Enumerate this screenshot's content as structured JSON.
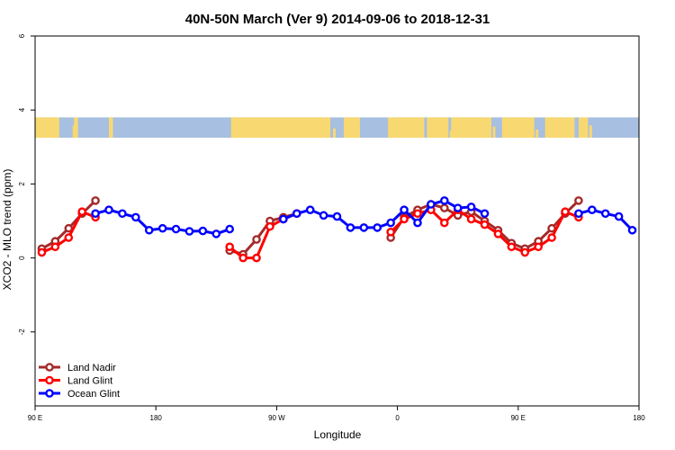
{
  "chart_data": {
    "type": "line",
    "title": "40N-50N March (Ver 9)   2014-09-06 to 2018-12-31",
    "xlabel": "Longitude",
    "ylabel": "XCO2 - MLO trend (ppm)",
    "x_ticks": [
      "90 E",
      "180",
      "90 W",
      "0",
      "90 E",
      "180"
    ],
    "y_ticks": [
      "-2",
      "0",
      "2",
      "4",
      "6"
    ],
    "xlim": [
      90,
      540
    ],
    "ylim": [
      -4,
      6
    ],
    "legend_position": "bottom-left",
    "map_band": {
      "ymin": 3.25,
      "ymax": 3.8,
      "land_color": "#f8d871",
      "ocean_color": "#a7bfe0"
    },
    "series": [
      {
        "name": "Land Nadir",
        "color": "#a52a2a",
        "points": [
          {
            "x": 95,
            "y": 0.25
          },
          {
            "x": 105,
            "y": 0.45
          },
          {
            "x": 115,
            "y": 0.8
          },
          {
            "x": 125,
            "y": 1.2
          },
          {
            "x": 135,
            "y": 1.55
          },
          {
            "x": 235,
            "y": 0.2
          },
          {
            "x": 245,
            "y": 0.1
          },
          {
            "x": 255,
            "y": 0.5
          },
          {
            "x": 265,
            "y": 1.0
          },
          {
            "x": 275,
            "y": 1.1
          },
          {
            "x": 285,
            "y": 1.2
          },
          {
            "x": 355,
            "y": 0.55
          },
          {
            "x": 365,
            "y": 1.1
          },
          {
            "x": 375,
            "y": 1.3
          },
          {
            "x": 385,
            "y": 1.45
          },
          {
            "x": 395,
            "y": 1.35
          },
          {
            "x": 405,
            "y": 1.15
          },
          {
            "x": 415,
            "y": 1.25
          },
          {
            "x": 425,
            "y": 1.0
          },
          {
            "x": 435,
            "y": 0.75
          },
          {
            "x": 445,
            "y": 0.4
          },
          {
            "x": 455,
            "y": 0.25
          },
          {
            "x": 465,
            "y": 0.45
          },
          {
            "x": 475,
            "y": 0.8
          },
          {
            "x": 485,
            "y": 1.2
          },
          {
            "x": 495,
            "y": 1.55
          }
        ]
      },
      {
        "name": "Land Glint",
        "color": "#ff0000",
        "points": [
          {
            "x": 95,
            "y": 0.15
          },
          {
            "x": 105,
            "y": 0.3
          },
          {
            "x": 115,
            "y": 0.55
          },
          {
            "x": 125,
            "y": 1.25
          },
          {
            "x": 135,
            "y": 1.1
          },
          {
            "x": 235,
            "y": 0.3
          },
          {
            "x": 245,
            "y": 0.0
          },
          {
            "x": 255,
            "y": 0.0
          },
          {
            "x": 265,
            "y": 0.85
          },
          {
            "x": 275,
            "y": 1.05
          },
          {
            "x": 285,
            "y": 1.2
          },
          {
            "x": 355,
            "y": 0.7
          },
          {
            "x": 365,
            "y": 1.05
          },
          {
            "x": 375,
            "y": 1.2
          },
          {
            "x": 385,
            "y": 1.3
          },
          {
            "x": 395,
            "y": 0.95
          },
          {
            "x": 405,
            "y": 1.3
          },
          {
            "x": 415,
            "y": 1.05
          },
          {
            "x": 425,
            "y": 0.9
          },
          {
            "x": 435,
            "y": 0.65
          },
          {
            "x": 445,
            "y": 0.3
          },
          {
            "x": 455,
            "y": 0.15
          },
          {
            "x": 465,
            "y": 0.3
          },
          {
            "x": 475,
            "y": 0.55
          },
          {
            "x": 485,
            "y": 1.25
          },
          {
            "x": 495,
            "y": 1.1
          }
        ]
      },
      {
        "name": "Ocean Glint",
        "color": "#0000ff",
        "points": [
          {
            "x": 135,
            "y": 1.2
          },
          {
            "x": 145,
            "y": 1.3
          },
          {
            "x": 155,
            "y": 1.2
          },
          {
            "x": 165,
            "y": 1.1
          },
          {
            "x": 175,
            "y": 0.75
          },
          {
            "x": 185,
            "y": 0.8
          },
          {
            "x": 195,
            "y": 0.78
          },
          {
            "x": 205,
            "y": 0.72
          },
          {
            "x": 215,
            "y": 0.73
          },
          {
            "x": 225,
            "y": 0.65
          },
          {
            "x": 235,
            "y": 0.78
          },
          {
            "x": 275,
            "y": 1.05
          },
          {
            "x": 285,
            "y": 1.2
          },
          {
            "x": 295,
            "y": 1.3
          },
          {
            "x": 305,
            "y": 1.15
          },
          {
            "x": 315,
            "y": 1.12
          },
          {
            "x": 325,
            "y": 0.82
          },
          {
            "x": 335,
            "y": 0.82
          },
          {
            "x": 345,
            "y": 0.82
          },
          {
            "x": 355,
            "y": 0.95
          },
          {
            "x": 365,
            "y": 1.3
          },
          {
            "x": 375,
            "y": 0.95
          },
          {
            "x": 385,
            "y": 1.45
          },
          {
            "x": 395,
            "y": 1.55
          },
          {
            "x": 405,
            "y": 1.35
          },
          {
            "x": 415,
            "y": 1.38
          },
          {
            "x": 425,
            "y": 1.2
          },
          {
            "x": 495,
            "y": 1.2
          },
          {
            "x": 505,
            "y": 1.3
          },
          {
            "x": 515,
            "y": 1.2
          },
          {
            "x": 525,
            "y": 1.12
          },
          {
            "x": 535,
            "y": 0.75
          }
        ]
      }
    ]
  }
}
